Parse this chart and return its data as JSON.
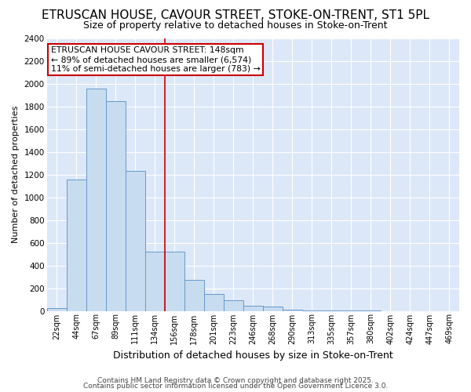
{
  "title": "ETRUSCAN HOUSE, CAVOUR STREET, STOKE-ON-TRENT, ST1 5PL",
  "subtitle": "Size of property relative to detached houses in Stoke-on-Trent",
  "xlabel": "Distribution of detached houses by size in Stoke-on-Trent",
  "ylabel": "Number of detached properties",
  "categories": [
    "22sqm",
    "44sqm",
    "67sqm",
    "89sqm",
    "111sqm",
    "134sqm",
    "156sqm",
    "178sqm",
    "201sqm",
    "223sqm",
    "246sqm",
    "268sqm",
    "290sqm",
    "313sqm",
    "335sqm",
    "357sqm",
    "380sqm",
    "402sqm",
    "424sqm",
    "447sqm",
    "469sqm"
  ],
  "values": [
    22,
    1160,
    1960,
    1850,
    1230,
    520,
    520,
    270,
    150,
    90,
    45,
    38,
    10,
    5,
    3,
    2,
    1,
    0,
    0,
    0,
    0
  ],
  "bar_color": "#c8dcf0",
  "bar_edge_color": "#6699cc",
  "red_line_x": 5.5,
  "annotation_text": "ETRUSCAN HOUSE CAVOUR STREET: 148sqm\n← 89% of detached houses are smaller (6,574)\n11% of semi-detached houses are larger (783) →",
  "annotation_box_color": "#ffffff",
  "annotation_box_edge_color": "#cc0000",
  "red_line_color": "#cc0000",
  "ylim": [
    0,
    2400
  ],
  "yticks": [
    0,
    200,
    400,
    600,
    800,
    1000,
    1200,
    1400,
    1600,
    1800,
    2000,
    2200,
    2400
  ],
  "footer1": "Contains HM Land Registry data © Crown copyright and database right 2025.",
  "footer2": "Contains public sector information licensed under the Open Government Licence 3.0.",
  "fig_background_color": "#ffffff",
  "plot_background_color": "#dce8f8",
  "grid_color": "#ffffff",
  "title_fontsize": 11,
  "subtitle_fontsize": 9,
  "xlabel_fontsize": 9,
  "ylabel_fontsize": 8
}
